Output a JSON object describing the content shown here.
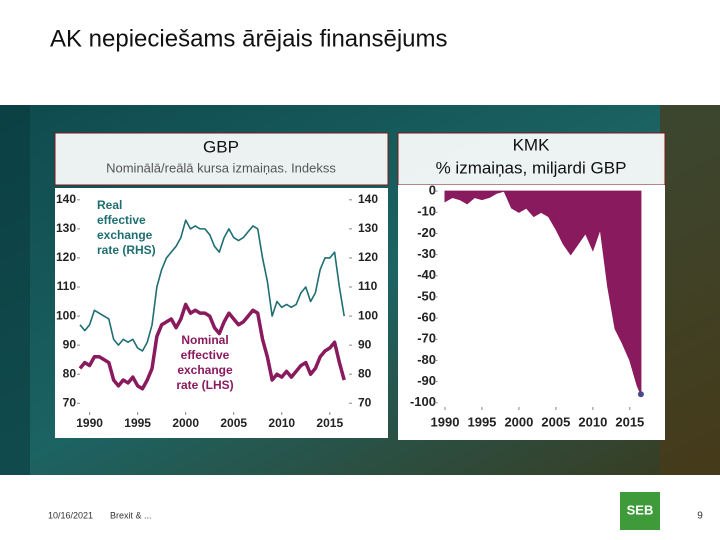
{
  "title": "AK nepieciešams ārējais finansējums",
  "footer": {
    "date": "10/16/2021",
    "text": "Brexit & ...",
    "logo": "SEB",
    "page": "9"
  },
  "chart_data": [
    {
      "type": "line",
      "title": "GBP",
      "subtitle": "Nominālā/reālā kursa izmaiņas. Indekss",
      "x": [
        1989,
        1989.5,
        1990,
        1990.5,
        1991,
        1991.5,
        1992,
        1992.5,
        1993,
        1993.5,
        1994,
        1994.5,
        1995,
        1995.5,
        1996,
        1996.5,
        1997,
        1997.5,
        1998,
        1998.5,
        1999,
        1999.5,
        2000,
        2000.5,
        2001,
        2001.5,
        2002,
        2002.5,
        2003,
        2003.5,
        2004,
        2004.5,
        2005,
        2005.5,
        2006,
        2006.5,
        2007,
        2007.5,
        2008,
        2008.5,
        2009,
        2009.5,
        2010,
        2010.5,
        2011,
        2011.5,
        2012,
        2012.5,
        2013,
        2013.5,
        2014,
        2014.5,
        2015,
        2015.5,
        2016,
        2016.5
      ],
      "series": [
        {
          "name": "Real effective exchange rate (RHS)",
          "color": "#1f6e72",
          "axis": "y2",
          "values": [
            97,
            95,
            97,
            102,
            101,
            100,
            99,
            92,
            90,
            92,
            91,
            92,
            89,
            88,
            91,
            97,
            110,
            116,
            120,
            122,
            124,
            127,
            133,
            130,
            131,
            130,
            130,
            128,
            124,
            122,
            127,
            130,
            127,
            126,
            127,
            129,
            131,
            130,
            120,
            112,
            100,
            105,
            103,
            104,
            103,
            104,
            108,
            110,
            105,
            108,
            116,
            120,
            120,
            122,
            110,
            100
          ]
        },
        {
          "name": "Nominal effective exchange rate (LHS)",
          "color": "#8a1a5e",
          "values": [
            82,
            84,
            83,
            86,
            86,
            85,
            84,
            78,
            76,
            78,
            77,
            79,
            76,
            75,
            78,
            82,
            93,
            97,
            98,
            99,
            96,
            99,
            104,
            101,
            102,
            101,
            101,
            100,
            96,
            94,
            98,
            101,
            99,
            97,
            98,
            100,
            102,
            101,
            92,
            86,
            78,
            80,
            79,
            81,
            79,
            81,
            83,
            84,
            80,
            82,
            86,
            88,
            89,
            91,
            84,
            78
          ]
        }
      ],
      "xlim": [
        1989,
        2017
      ],
      "xticks": [
        1990,
        1995,
        2000,
        2005,
        2010,
        2015
      ],
      "ylim": [
        67,
        142
      ],
      "yticks": [
        70,
        80,
        90,
        100,
        110,
        120,
        130,
        140
      ],
      "y2lim": [
        67,
        142
      ],
      "y2ticks": [
        70,
        80,
        90,
        100,
        110,
        120,
        130,
        140
      ]
    },
    {
      "type": "area",
      "title": "KMK",
      "subtitle": "% izmaiņas, miljardi GBP",
      "color": "#8a1a5e",
      "x": [
        1990,
        1991,
        1992,
        1993,
        1994,
        1995,
        1996,
        1997,
        1998,
        1999,
        2000,
        2001,
        2002,
        2003,
        2004,
        2005,
        2006,
        2007,
        2008,
        2009,
        2010,
        2011,
        2012,
        2013,
        2014,
        2015,
        2016,
        2016.5
      ],
      "values": [
        -5,
        -3,
        -4,
        -6,
        -3,
        -4,
        -3,
        -1,
        0,
        -8,
        -10,
        -8,
        -12,
        -10,
        -12,
        -18,
        -25,
        -30,
        -25,
        -20,
        -28,
        -18,
        -45,
        -65,
        -72,
        -80,
        -92,
        -96
      ],
      "xlim": [
        1989,
        2018
      ],
      "xticks": [
        1990,
        1995,
        2000,
        2005,
        2010,
        2015
      ],
      "ylim": [
        -102,
        1
      ],
      "yticks": [
        0,
        -10,
        -20,
        -30,
        -40,
        -50,
        -60,
        -70,
        -80,
        -90,
        -100
      ]
    }
  ]
}
